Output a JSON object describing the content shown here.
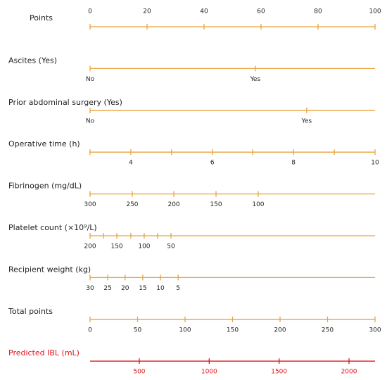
{
  "chart_data": {
    "type": "nomogram",
    "color": "#e8a33d",
    "rows": [
      {
        "name": "Points",
        "tick_side": "above",
        "xlim": [
          0,
          100
        ],
        "ticks": [
          0,
          20,
          40,
          60,
          80,
          100
        ]
      },
      {
        "name": "Ascites (Yes)",
        "ticks": [
          {
            "label": "No",
            "points": 0
          },
          {
            "label": "Yes",
            "points": 58
          }
        ]
      },
      {
        "name": "Prior abdominal surgery (Yes)",
        "ticks": [
          {
            "label": "No",
            "points": 0
          },
          {
            "label": "Yes",
            "points": 76
          }
        ]
      },
      {
        "name": "Operative time (h)",
        "ticks": [
          {
            "value": 4,
            "points": 14.3
          },
          {
            "value": 6,
            "points": 42.9
          },
          {
            "value": 8,
            "points": 71.4
          },
          {
            "value": 10,
            "points": 100
          }
        ],
        "minor_ticks": [
          0,
          28.6,
          57.1,
          85.7
        ]
      },
      {
        "name": "Fibrinogen (mg/dL)",
        "ticks": [
          {
            "value": 300,
            "points": 0
          },
          {
            "value": 250,
            "points": 14.8
          },
          {
            "value": 200,
            "points": 29.4
          },
          {
            "value": 150,
            "points": 44.2
          },
          {
            "value": 100,
            "points": 59
          }
        ]
      },
      {
        "name": "Platelet count (×10⁹/L)",
        "ticks": [
          {
            "value": 200,
            "points": 0
          },
          {
            "value": 150,
            "points": 9.4
          },
          {
            "value": 100,
            "points": 19
          },
          {
            "value": 50,
            "points": 28.4
          }
        ],
        "minor_ticks": [
          4.7,
          14.3,
          23.7
        ]
      },
      {
        "name": "Recipient weight (kg)",
        "ticks": [
          {
            "value": 30,
            "points": 0
          },
          {
            "value": 25,
            "points": 6.2
          },
          {
            "value": 20,
            "points": 12.3
          },
          {
            "value": 15,
            "points": 18.5
          },
          {
            "value": 10,
            "points": 24.7
          },
          {
            "value": 5,
            "points": 30.9
          }
        ]
      },
      {
        "name": "Total points",
        "xlim": [
          0,
          300
        ],
        "ticks": [
          0,
          50,
          100,
          150,
          200,
          250,
          300
        ]
      },
      {
        "name": "Predicted IBL (mL)",
        "color": "#e0151b",
        "xlim": [
          148,
          2186
        ],
        "ticks": [
          500,
          1000,
          1500,
          2000
        ]
      }
    ]
  }
}
